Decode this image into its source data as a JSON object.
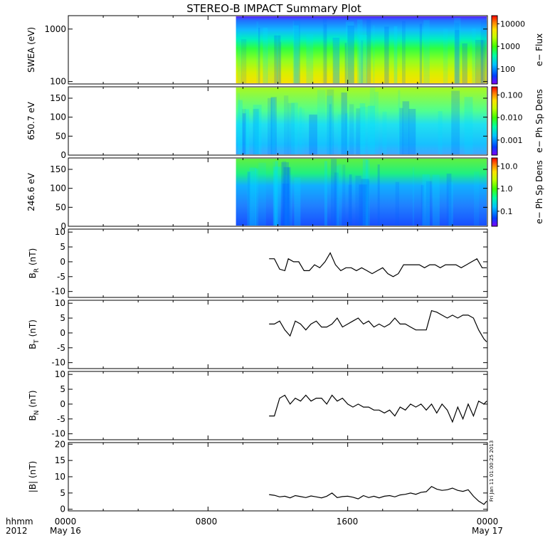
{
  "title": "STEREO-B IMPACT Summary Plot",
  "footer": {
    "left_top": "hhmm",
    "left_bottom": "2012",
    "ticks": [
      "0000",
      "0800",
      "1600",
      "0000"
    ],
    "dates": [
      "May 16",
      "May 17"
    ],
    "stamp": "Fri Jan 11 01:00:25 2013"
  },
  "colors": {
    "trace": "#000000",
    "spectrogram_scale": [
      "#7f00ff",
      "#0040ff",
      "#00c0ff",
      "#00ffa0",
      "#40ff00",
      "#c0ff00",
      "#ffe000",
      "#ff8000",
      "#ff0000"
    ]
  },
  "chart_data": [
    {
      "type": "heatmap",
      "ylabel": "SWEA (eV)",
      "yscale": "log",
      "ylim": [
        90,
        1800
      ],
      "yticks": [
        "1000",
        "100"
      ],
      "colorbar_label": "e− Flux",
      "colorbar_ticks": [
        "10000",
        "1000",
        "100"
      ],
      "data_start_hour": 9.6,
      "xlim_hours": [
        0,
        24
      ]
    },
    {
      "type": "heatmap",
      "ylabel": "650.7 eV",
      "ylim": [
        0,
        180
      ],
      "yticks": [
        "150",
        "100",
        "50",
        "0"
      ],
      "colorbar_label": "e− Ph Sp Dens",
      "colorbar_ticks": [
        "0.100",
        "0.010",
        "0.001"
      ],
      "data_start_hour": 9.6,
      "xlim_hours": [
        0,
        24
      ]
    },
    {
      "type": "heatmap",
      "ylabel": "246.6 eV",
      "ylim": [
        0,
        180
      ],
      "yticks": [
        "150",
        "100",
        "50",
        "0"
      ],
      "colorbar_label": "e− Ph Sp Dens",
      "colorbar_ticks": [
        "10.0",
        "1.0",
        "0.1"
      ],
      "data_start_hour": 9.6,
      "xlim_hours": [
        0,
        24
      ]
    },
    {
      "type": "line",
      "ylabel_main": "B",
      "ylabel_sub": "R",
      "ylabel_unit": " (nT)",
      "ylim": [
        -12,
        11
      ],
      "yticks": [
        "10",
        "5",
        "0",
        "-5",
        "-10"
      ],
      "xlim_hours": [
        0,
        24
      ],
      "x": [
        11.5,
        11.8,
        12.1,
        12.4,
        12.6,
        12.9,
        13.2,
        13.5,
        13.8,
        14.1,
        14.4,
        14.7,
        15.0,
        15.3,
        15.6,
        15.9,
        16.2,
        16.5,
        16.8,
        17.1,
        17.4,
        17.7,
        18.0,
        18.3,
        18.6,
        18.9,
        19.2,
        19.5,
        19.8,
        20.1,
        20.4,
        20.7,
        21.0,
        21.3,
        21.6,
        21.9,
        22.2,
        22.5,
        22.8,
        23.1,
        23.4,
        23.7,
        24.0
      ],
      "values": [
        1,
        1,
        -2.5,
        -3,
        1,
        0,
        0,
        -3,
        -3,
        -1,
        -2,
        0,
        3,
        -1,
        -3,
        -2,
        -2,
        -3,
        -2,
        -3,
        -4,
        -3,
        -2,
        -4,
        -5,
        -4,
        -1,
        -1,
        -1,
        -1,
        -2,
        -1,
        -1,
        -2,
        -1,
        -1,
        -1,
        -2,
        -1,
        0,
        1,
        -2,
        -2
      ]
    },
    {
      "type": "line",
      "ylabel_main": "B",
      "ylabel_sub": "T",
      "ylabel_unit": " (nT)",
      "ylim": [
        -12,
        11
      ],
      "yticks": [
        "10",
        "5",
        "0",
        "-5",
        "-10"
      ],
      "xlim_hours": [
        0,
        24
      ],
      "x": [
        11.5,
        11.8,
        12.1,
        12.4,
        12.7,
        13.0,
        13.3,
        13.6,
        13.9,
        14.2,
        14.5,
        14.8,
        15.1,
        15.4,
        15.7,
        16.0,
        16.3,
        16.6,
        16.9,
        17.2,
        17.5,
        17.8,
        18.1,
        18.4,
        18.7,
        19.0,
        19.3,
        19.6,
        19.9,
        20.2,
        20.5,
        20.8,
        21.1,
        21.4,
        21.7,
        22.0,
        22.3,
        22.6,
        22.9,
        23.2,
        23.5,
        23.8,
        24.0
      ],
      "values": [
        3,
        3,
        4,
        1,
        -1,
        4,
        3,
        1,
        3,
        4,
        2,
        2,
        3,
        5,
        2,
        3,
        4,
        5,
        3,
        4,
        2,
        3,
        2,
        3,
        5,
        3,
        3,
        2,
        1,
        1,
        1,
        7.5,
        7,
        6,
        5,
        6,
        5,
        6,
        6,
        5,
        1,
        -2,
        -3
      ]
    },
    {
      "type": "line",
      "ylabel_main": "B",
      "ylabel_sub": "N",
      "ylabel_unit": " (nT)",
      "ylim": [
        -12,
        11
      ],
      "yticks": [
        "10",
        "5",
        "0",
        "-5",
        "-10"
      ],
      "xlim_hours": [
        0,
        24
      ],
      "x": [
        11.5,
        11.8,
        12.1,
        12.4,
        12.7,
        13.0,
        13.3,
        13.6,
        13.9,
        14.2,
        14.5,
        14.8,
        15.1,
        15.4,
        15.7,
        16.0,
        16.3,
        16.6,
        16.9,
        17.2,
        17.5,
        17.8,
        18.1,
        18.4,
        18.7,
        19.0,
        19.3,
        19.6,
        19.9,
        20.2,
        20.5,
        20.8,
        21.1,
        21.4,
        21.7,
        22.0,
        22.3,
        22.6,
        22.9,
        23.2,
        23.5,
        23.8,
        24.0
      ],
      "values": [
        -4,
        -4,
        2,
        3,
        0,
        2,
        1,
        3,
        1,
        2,
        2,
        0,
        3,
        1,
        2,
        0,
        -1,
        0,
        -1,
        -1,
        -2,
        -2,
        -3,
        -2,
        -4,
        -1,
        -2,
        0,
        -1,
        0,
        -2,
        0,
        -3,
        0,
        -2,
        -6,
        -1,
        -5,
        0,
        -4,
        1,
        0,
        1
      ]
    },
    {
      "type": "line",
      "ylabel_main": "|B|",
      "ylabel_sub": "",
      "ylabel_unit": " (nT)",
      "ylim": [
        -0.5,
        20.5
      ],
      "yticks": [
        "20",
        "15",
        "10",
        "5",
        "0"
      ],
      "xlim_hours": [
        0,
        24
      ],
      "x": [
        11.5,
        11.8,
        12.1,
        12.4,
        12.7,
        13.0,
        13.3,
        13.6,
        13.9,
        14.2,
        14.5,
        14.8,
        15.1,
        15.4,
        15.7,
        16.0,
        16.3,
        16.6,
        16.9,
        17.2,
        17.5,
        17.8,
        18.1,
        18.4,
        18.7,
        19.0,
        19.3,
        19.6,
        19.9,
        20.2,
        20.5,
        20.8,
        21.1,
        21.4,
        21.7,
        22.0,
        22.3,
        22.6,
        22.9,
        23.2,
        23.5,
        23.8,
        24.0
      ],
      "values": [
        4.5,
        4.3,
        3.8,
        4.0,
        3.5,
        4.2,
        3.9,
        3.6,
        4.1,
        3.8,
        3.5,
        4.0,
        5.0,
        3.6,
        3.9,
        4.0,
        3.7,
        3.2,
        4.2,
        3.6,
        4.0,
        3.5,
        4.0,
        4.2,
        3.8,
        4.4,
        4.6,
        5.0,
        4.6,
        5.2,
        5.4,
        7.0,
        6.2,
        5.8,
        6.0,
        6.5,
        5.8,
        5.5,
        6.0,
        4.0,
        2.5,
        1.5,
        2.5
      ]
    }
  ]
}
